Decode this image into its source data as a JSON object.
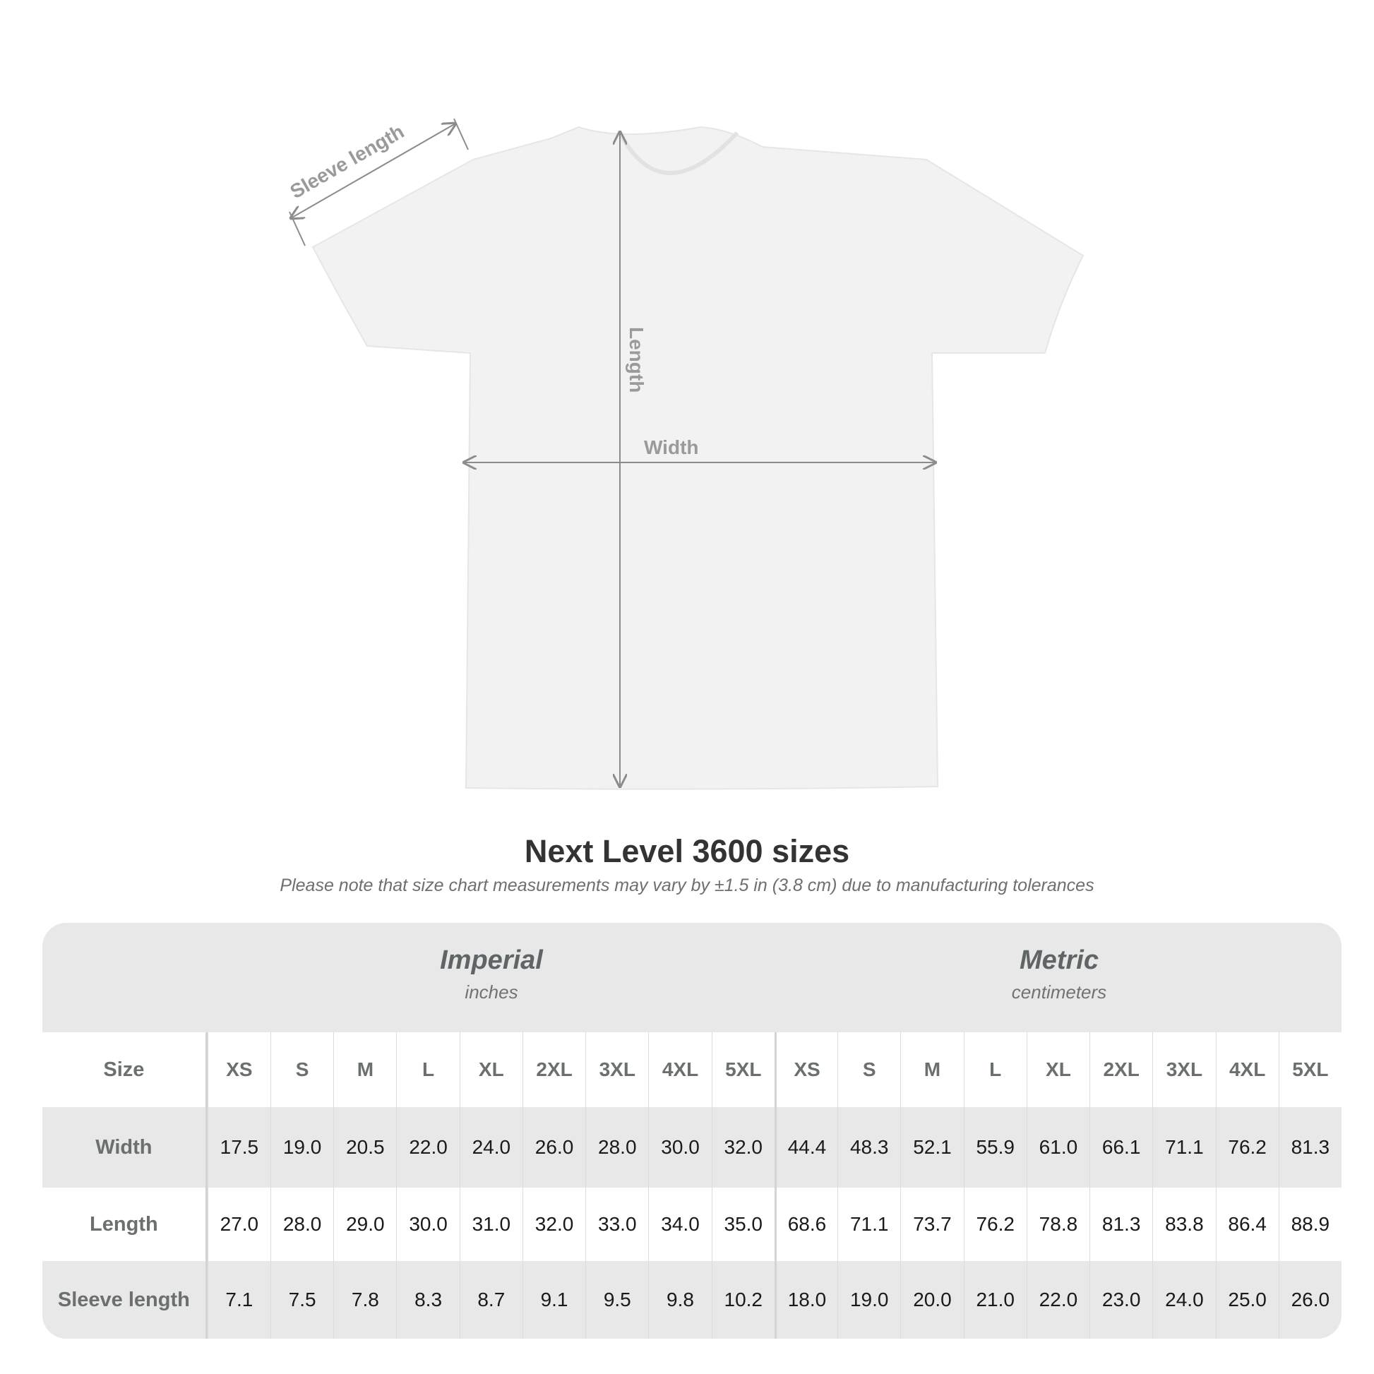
{
  "diagram": {
    "labels": {
      "sleeve": "Sleeve length",
      "length": "Length",
      "width": "Width"
    },
    "shirt_color": "#f2f2f2",
    "arrow_color": "#8c8c8c"
  },
  "title": "Next Level 3600 sizes",
  "note": "Please note that size chart measurements may vary by ±1.5 in (3.8 cm) due to manufacturing tolerances",
  "table": {
    "imperial": {
      "name": "Imperial",
      "unit": "inches"
    },
    "metric": {
      "name": "Metric",
      "unit": "centimeters"
    },
    "sizes": [
      "XS",
      "S",
      "M",
      "L",
      "XL",
      "2XL",
      "3XL",
      "4XL",
      "5XL"
    ],
    "rows": [
      {
        "label": "Size",
        "imperial": [
          "XS",
          "S",
          "M",
          "L",
          "XL",
          "2XL",
          "3XL",
          "4XL",
          "5XL"
        ],
        "metric": [
          "XS",
          "S",
          "M",
          "L",
          "XL",
          "2XL",
          "3XL",
          "4XL",
          "5XL"
        ]
      },
      {
        "label": "Width",
        "imperial": [
          "17.5",
          "19.0",
          "20.5",
          "22.0",
          "24.0",
          "26.0",
          "28.0",
          "30.0",
          "32.0"
        ],
        "metric": [
          "44.4",
          "48.3",
          "52.1",
          "55.9",
          "61.0",
          "66.1",
          "71.1",
          "76.2",
          "81.3"
        ]
      },
      {
        "label": "Length",
        "imperial": [
          "27.0",
          "28.0",
          "29.0",
          "30.0",
          "31.0",
          "32.0",
          "33.0",
          "34.0",
          "35.0"
        ],
        "metric": [
          "68.6",
          "71.1",
          "73.7",
          "76.2",
          "78.8",
          "81.3",
          "83.8",
          "86.4",
          "88.9"
        ]
      },
      {
        "label": "Sleeve length",
        "imperial": [
          "7.1",
          "7.5",
          "7.8",
          "8.3",
          "8.7",
          "9.1",
          "9.5",
          "9.8",
          "10.2"
        ],
        "metric": [
          "18.0",
          "19.0",
          "20.0",
          "21.0",
          "22.0",
          "23.0",
          "24.0",
          "25.0",
          "26.0"
        ]
      }
    ]
  }
}
